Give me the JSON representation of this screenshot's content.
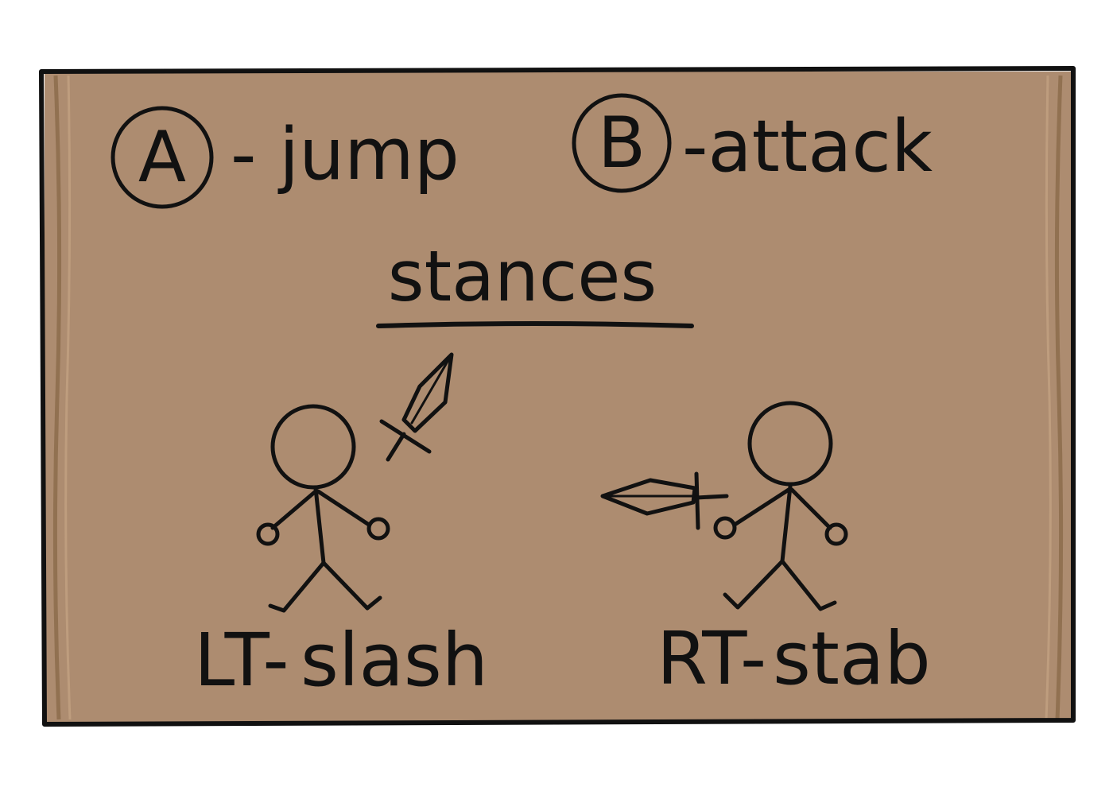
{
  "colors": {
    "board": "#ad8c70",
    "board_edge": "#8a6a4a",
    "ink": "#111111",
    "page": "#ffffff"
  },
  "controls": {
    "a_button": {
      "glyph": "A",
      "action": "- jump"
    },
    "b_button": {
      "glyph": "B",
      "action": "-attack"
    }
  },
  "section_title": "stances",
  "stances": [
    {
      "trigger": "LT-",
      "action": "slash",
      "icon": "sword-raised-icon"
    },
    {
      "trigger": "RT-",
      "action": "stab",
      "icon": "sword-thrust-icon"
    }
  ]
}
